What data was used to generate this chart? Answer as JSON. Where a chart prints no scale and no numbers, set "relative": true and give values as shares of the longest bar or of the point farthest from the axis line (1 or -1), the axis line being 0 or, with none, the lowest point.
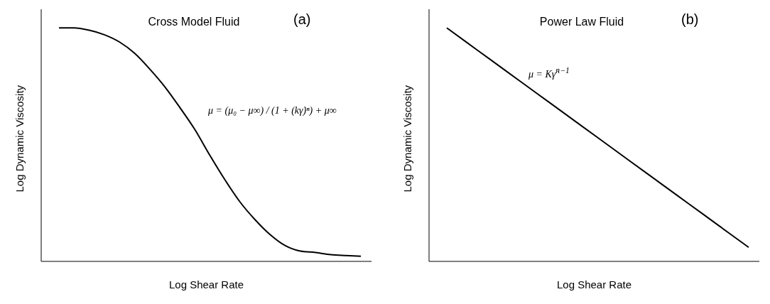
{
  "chart_data": [
    {
      "type": "line",
      "title": "Cross Model Fluid",
      "xlabel": "Log Shear Rate",
      "ylabel": "Log Dynamic Viscosity",
      "relative": true,
      "categories": [
        null,
        null,
        null,
        null,
        null,
        null,
        null,
        null,
        null,
        null,
        null,
        null,
        null,
        null,
        null,
        null,
        null,
        null,
        null,
        null,
        null
      ],
      "series": [
        {
          "color": "#000000",
          "values": [
            1.0,
            1.0,
            0.99,
            0.971,
            0.94,
            0.892,
            0.825,
            0.749,
            0.66,
            0.565,
            0.454,
            0.349,
            0.254,
            0.178,
            0.114,
            0.067,
            0.044,
            0.038,
            0.029,
            0.025,
            0.022
          ]
        }
      ],
      "annotations": [
        "(a)",
        "μ = (μ₀ − μ∞) / (1 + (kγ̇)ⁿ) + μ∞"
      ]
    },
    {
      "type": "line",
      "title": "Power Law Fluid",
      "xlabel": "Log Shear Rate",
      "ylabel": "Log Dynamic Viscosity",
      "relative": true,
      "categories": [
        null,
        null,
        null,
        null,
        null,
        null,
        null,
        null,
        null,
        null,
        null
      ],
      "series": [
        {
          "color": "#000000",
          "values": [
            1.0,
            0.906,
            0.812,
            0.718,
            0.624,
            0.53,
            0.436,
            0.342,
            0.248,
            0.154,
            0.06
          ]
        }
      ],
      "annotations": [
        "(b)",
        "μ = Kγ̇$^{n−1}$"
      ]
    }
  ]
}
